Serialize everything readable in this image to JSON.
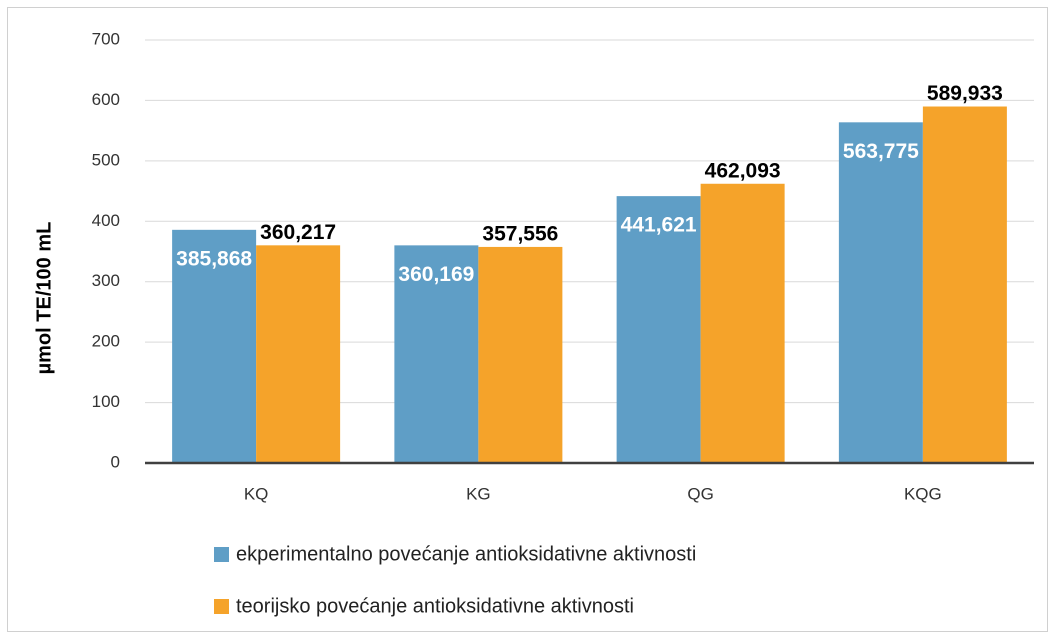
{
  "chart_data": {
    "type": "bar",
    "ylabel": "µmol TE/100 mL",
    "categories": [
      "KQ",
      "KG",
      "QG",
      "KQG"
    ],
    "series": [
      {
        "name": "ekperimentalno povećanje antioksidativne aktivnosti",
        "color": "#5f9ec6",
        "values": [
          385.868,
          360.169,
          441.621,
          563.775
        ],
        "value_labels": [
          "385,868",
          "360,169",
          "441,621",
          "563,775"
        ]
      },
      {
        "name": "teorijsko povećanje antioksidativne aktivnosti",
        "color": "#f5a32a",
        "values": [
          360.217,
          357.556,
          462.093,
          589.933
        ],
        "value_labels": [
          "360,217",
          "357,556",
          "462,093",
          "589,933"
        ]
      }
    ],
    "ylim": [
      0,
      700
    ],
    "yticks": [
      0,
      100,
      200,
      300,
      400,
      500,
      600,
      700
    ],
    "grid": true
  }
}
